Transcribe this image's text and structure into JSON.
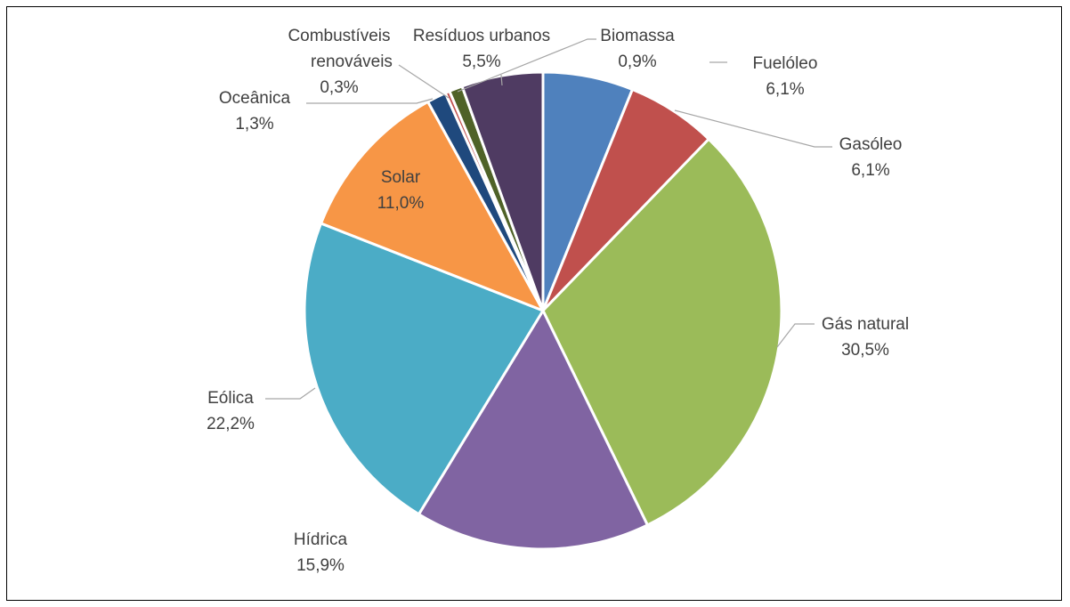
{
  "chart_data": {
    "type": "pie",
    "title": "",
    "slices": [
      {
        "label": "Fuelóleo",
        "value": 6.1,
        "display": "6,1%",
        "color": "#4F81BD"
      },
      {
        "label": "Gasóleo",
        "value": 6.1,
        "display": "6,1%",
        "color": "#C0504D"
      },
      {
        "label": "Gás natural",
        "value": 30.5,
        "display": "30,5%",
        "color": "#9BBB59"
      },
      {
        "label": "Hídrica",
        "value": 15.9,
        "display": "15,9%",
        "color": "#8064A2"
      },
      {
        "label": "Eólica",
        "value": 22.2,
        "display": "22,2%",
        "color": "#4BACC6"
      },
      {
        "label": "Solar",
        "value": 11.0,
        "display": "11,0%",
        "color": "#F79646"
      },
      {
        "label": "Oceânica",
        "value": 1.3,
        "display": "1,3%",
        "color": "#1F497D"
      },
      {
        "label": "Combustíveis renováveis",
        "value": 0.3,
        "display": "0,3%",
        "color": "#C0504D"
      },
      {
        "label": "Biomassa",
        "value": 0.9,
        "display": "0,9%",
        "color": "#4F6228"
      },
      {
        "label": "Resíduos urbanos",
        "value": 5.5,
        "display": "5,5%",
        "color": "#4F3B62"
      }
    ]
  }
}
